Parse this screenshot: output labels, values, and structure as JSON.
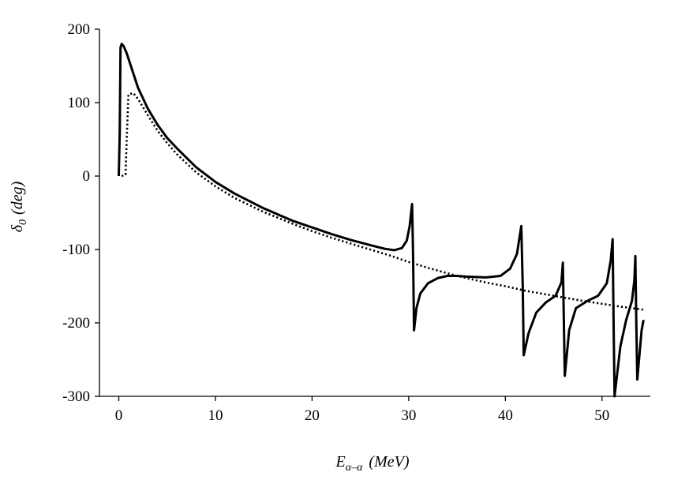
{
  "chart_data": {
    "type": "line",
    "title": "",
    "xlabel": {
      "symbol": "E",
      "subscript": "α–α",
      "unit": "(MeV)"
    },
    "ylabel": {
      "symbol": "δ",
      "subscript": "0",
      "unit": "(deg)"
    },
    "xlim": [
      -2,
      55
    ],
    "ylim": [
      -300,
      200
    ],
    "xticks": [
      0,
      10,
      20,
      30,
      40,
      50
    ],
    "yticks": [
      200,
      100,
      0,
      -100,
      -200,
      -300
    ],
    "grid": false,
    "legend": "none",
    "series": [
      {
        "style": "solid",
        "color": "#000000",
        "points": [
          [
            0,
            0
          ],
          [
            0.1,
            60
          ],
          [
            0.18,
            175
          ],
          [
            0.3,
            180
          ],
          [
            0.5,
            177
          ],
          [
            0.8,
            168
          ],
          [
            1.2,
            152
          ],
          [
            2,
            120
          ],
          [
            3,
            92
          ],
          [
            4,
            70
          ],
          [
            5,
            52
          ],
          [
            6,
            38
          ],
          [
            8,
            12
          ],
          [
            10,
            -8
          ],
          [
            12,
            -24
          ],
          [
            15,
            -44
          ],
          [
            18,
            -61
          ],
          [
            20,
            -70
          ],
          [
            22,
            -79
          ],
          [
            24,
            -87
          ],
          [
            26,
            -94
          ],
          [
            27.5,
            -99
          ],
          [
            28.5,
            -101
          ],
          [
            29.3,
            -98
          ],
          [
            29.8,
            -88
          ],
          [
            30.1,
            -68
          ],
          [
            30.35,
            -38
          ],
          [
            30.45,
            -105
          ],
          [
            30.55,
            -210
          ],
          [
            30.8,
            -180
          ],
          [
            31.2,
            -160
          ],
          [
            32,
            -146
          ],
          [
            33,
            -139
          ],
          [
            34,
            -136
          ],
          [
            35,
            -136
          ],
          [
            36,
            -137
          ],
          [
            38,
            -138
          ],
          [
            39.5,
            -136
          ],
          [
            40.5,
            -126
          ],
          [
            41.2,
            -106
          ],
          [
            41.65,
            -68
          ],
          [
            41.8,
            -150
          ],
          [
            41.9,
            -244
          ],
          [
            42.4,
            -214
          ],
          [
            43.2,
            -186
          ],
          [
            44.2,
            -172
          ],
          [
            45.2,
            -163
          ],
          [
            45.8,
            -145
          ],
          [
            45.95,
            -118
          ],
          [
            46.05,
            -195
          ],
          [
            46.15,
            -272
          ],
          [
            46.6,
            -210
          ],
          [
            47.3,
            -180
          ],
          [
            48.5,
            -170
          ],
          [
            49.6,
            -163
          ],
          [
            50.5,
            -146
          ],
          [
            50.9,
            -115
          ],
          [
            51.1,
            -86
          ],
          [
            51.2,
            -200
          ],
          [
            51.3,
            -300
          ],
          [
            51.9,
            -232
          ],
          [
            52.5,
            -196
          ],
          [
            53.1,
            -170
          ],
          [
            53.35,
            -142
          ],
          [
            53.45,
            -109
          ],
          [
            53.55,
            -200
          ],
          [
            53.65,
            -277
          ],
          [
            54.1,
            -210
          ],
          [
            54.3,
            -196
          ]
        ]
      },
      {
        "style": "dotted",
        "color": "#000000",
        "points": [
          [
            0.3,
            0
          ],
          [
            0.7,
            2
          ],
          [
            0.85,
            60
          ],
          [
            1.0,
            111
          ],
          [
            1.5,
            113
          ],
          [
            2,
            105
          ],
          [
            3,
            83
          ],
          [
            4,
            62
          ],
          [
            5,
            45
          ],
          [
            6,
            30
          ],
          [
            8,
            5
          ],
          [
            10,
            -14
          ],
          [
            12,
            -30
          ],
          [
            15,
            -49
          ],
          [
            18,
            -65
          ],
          [
            20,
            -75
          ],
          [
            22,
            -84
          ],
          [
            25,
            -96
          ],
          [
            28,
            -108
          ],
          [
            30,
            -117
          ],
          [
            32,
            -125
          ],
          [
            35,
            -136
          ],
          [
            38,
            -145
          ],
          [
            40,
            -150
          ],
          [
            42,
            -156
          ],
          [
            45,
            -163
          ],
          [
            48,
            -170
          ],
          [
            50,
            -174
          ],
          [
            52,
            -178
          ],
          [
            54.3,
            -182
          ]
        ]
      }
    ]
  }
}
